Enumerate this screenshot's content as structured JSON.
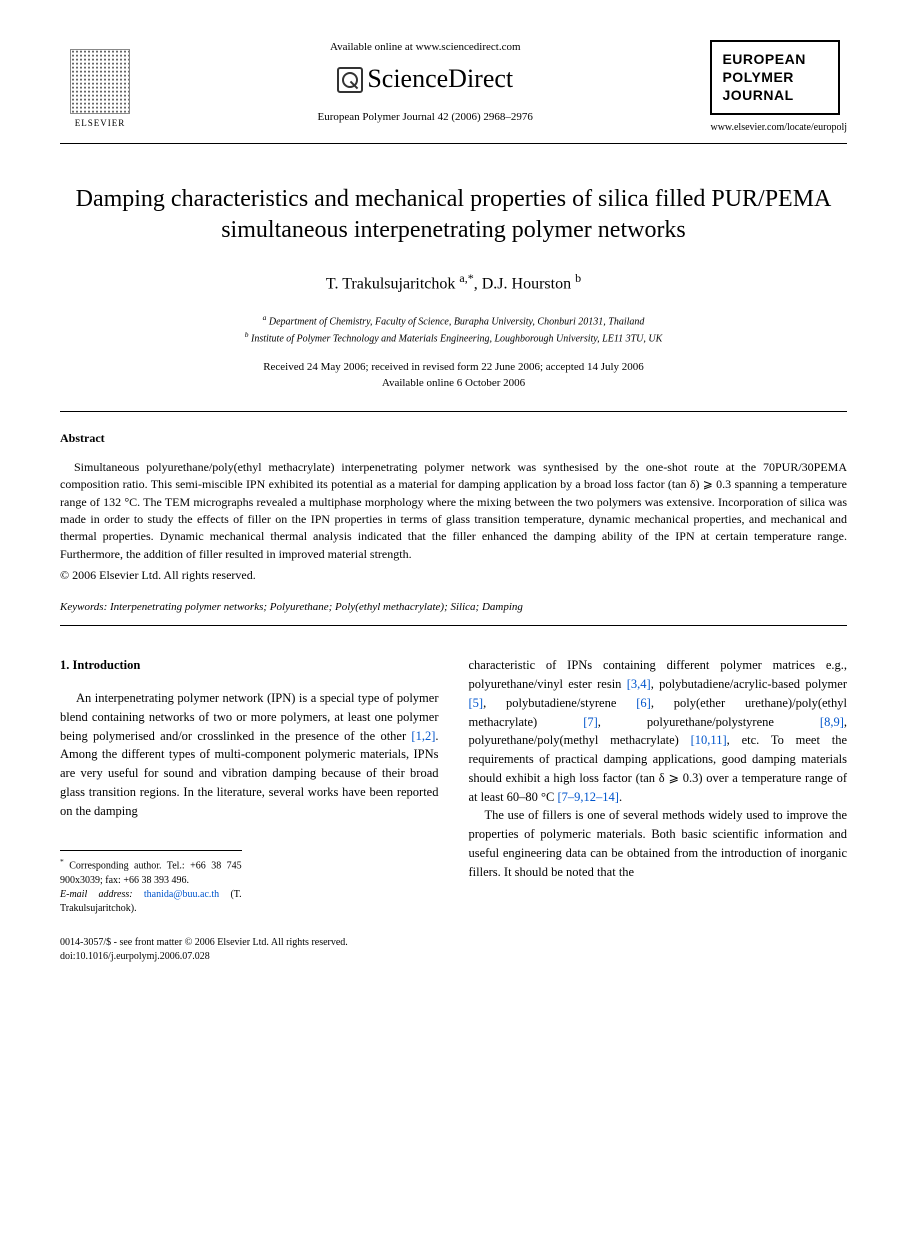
{
  "header": {
    "publisher": "ELSEVIER",
    "available_online": "Available online at www.sciencedirect.com",
    "sciencedirect": "ScienceDirect",
    "journal_ref": "European Polymer Journal 42 (2006) 2968–2976",
    "journal_box_line1": "EUROPEAN",
    "journal_box_line2": "POLYMER",
    "journal_box_line3": "JOURNAL",
    "journal_url": "www.elsevier.com/locate/europolj"
  },
  "title": "Damping characteristics and mechanical properties of silica filled PUR/PEMA simultaneous interpenetrating polymer networks",
  "authors": "T. Trakulsujaritchok ",
  "author_sup1": "a,*",
  "author_sep": ", D.J. Hourston ",
  "author_sup2": "b",
  "affiliations": {
    "a": "Department of Chemistry, Faculty of Science, Burapha University, Chonburi 20131, Thailand",
    "b": "Institute of Polymer Technology and Materials Engineering, Loughborough University, LE11 3TU, UK"
  },
  "dates": {
    "line1": "Received 24 May 2006; received in revised form 22 June 2006; accepted 14 July 2006",
    "line2": "Available online 6 October 2006"
  },
  "abstract": {
    "heading": "Abstract",
    "text": "Simultaneous polyurethane/poly(ethyl methacrylate) interpenetrating polymer network was synthesised by the one-shot route at the 70PUR/30PEMA composition ratio. This semi-miscible IPN exhibited its potential as a material for damping application by a broad loss factor (tan δ) ⩾ 0.3 spanning a temperature range of 132 °C. The TEM micrographs revealed a multiphase morphology where the mixing between the two polymers was extensive. Incorporation of silica was made in order to study the effects of filler on the IPN properties in terms of glass transition temperature, dynamic mechanical properties, and mechanical and thermal properties. Dynamic mechanical thermal analysis indicated that the filler enhanced the damping ability of the IPN at certain temperature range. Furthermore, the addition of filler resulted in improved material strength.",
    "copyright": "© 2006 Elsevier Ltd. All rights reserved."
  },
  "keywords": {
    "label": "Keywords:",
    "text": " Interpenetrating polymer networks; Polyurethane; Poly(ethyl methacrylate); Silica; Damping"
  },
  "body": {
    "section_heading": "1. Introduction",
    "col1_para1_part1": "An interpenetrating polymer network (IPN) is a special type of polymer blend containing networks of two or more polymers, at least one polymer being polymerised and/or crosslinked in the presence of the other ",
    "ref_1_2": "[1,2]",
    "col1_para1_part2": ". Among the different types of multi-component polymeric materials, IPNs are very useful for sound and vibration damping because of their broad glass transition regions. In the literature, several works have been reported on the damping",
    "col2_part1": "characteristic of IPNs containing different polymer matrices e.g., polyurethane/vinyl ester resin ",
    "ref_3_4": "[3,4]",
    "col2_part2": ", polybutadiene/acrylic-based polymer ",
    "ref_5": "[5]",
    "col2_part3": ", polybutadiene/styrene ",
    "ref_6": "[6]",
    "col2_part4": ", poly(ether urethane)/poly(ethyl methacrylate) ",
    "ref_7": "[7]",
    "col2_part5": ", polyurethane/polystyrene ",
    "ref_8_9": "[8,9]",
    "col2_part6": ", polyurethane/poly(methyl methacrylate) ",
    "ref_10_11": "[10,11]",
    "col2_part7": ", etc. To meet the requirements of practical damping applications, good damping materials should exhibit a high loss factor (tan δ ⩾ 0.3) over a temperature range of at least 60–80 °C ",
    "ref_7_9_12_14": "[7–9,12–14]",
    "col2_part8": ".",
    "col2_para2": "The use of fillers is one of several methods widely used to improve the properties of polymeric materials. Both basic scientific information and useful engineering data can be obtained from the introduction of inorganic fillers. It should be noted that the"
  },
  "footnotes": {
    "corresponding": "Corresponding author. Tel.: +66 38 745 900x3039; fax: +66 38 393 496.",
    "email_label": "E-mail address:",
    "email": "thanida@buu.ac.th",
    "email_attribution": " (T. Trakulsujaritchok)."
  },
  "footer": {
    "issn_line": "0014-3057/$ - see front matter © 2006 Elsevier Ltd. All rights reserved.",
    "doi": "doi:10.1016/j.eurpolymj.2006.07.028"
  },
  "colors": {
    "link": "#0055cc",
    "text": "#000000",
    "background": "#ffffff"
  }
}
